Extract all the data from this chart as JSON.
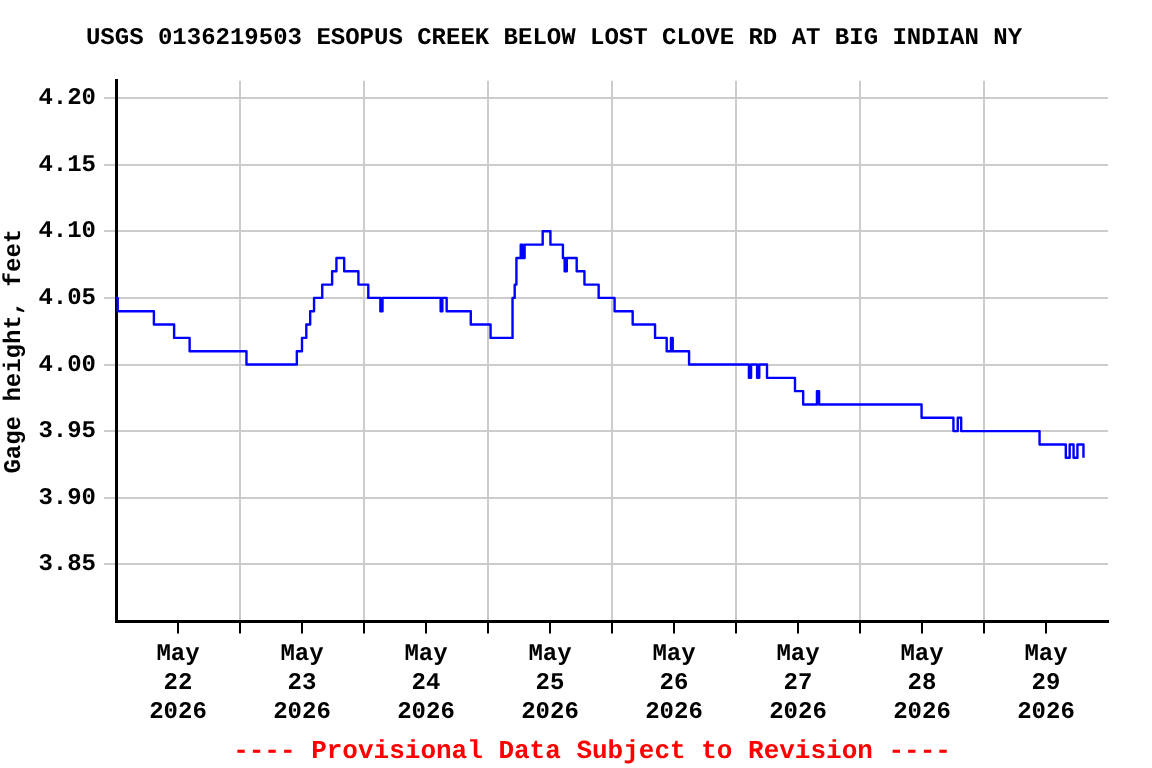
{
  "chart_data": {
    "type": "step",
    "title": "USGS 0136219503 ESOPUS CREEK BELOW LOST CLOVE RD AT BIG INDIAN NY",
    "ylabel": "Gage height, feet",
    "annotations": [
      "---- Provisional Data Subject to Revision ----"
    ],
    "x": [
      "2026-05-22T00:00",
      "2026-05-22T00:20",
      "2026-05-22T07:20",
      "2026-05-22T11:15",
      "2026-05-22T14:15",
      "2026-05-23T01:15",
      "2026-05-23T11:00",
      "2026-05-23T12:00",
      "2026-05-23T12:50",
      "2026-05-23T13:35",
      "2026-05-23T14:20",
      "2026-05-23T15:55",
      "2026-05-23T17:50",
      "2026-05-23T18:40",
      "2026-05-23T20:10",
      "2026-05-23T22:55",
      "2026-05-24T00:50",
      "2026-05-24T03:10",
      "2026-05-24T03:35",
      "2026-05-24T14:50",
      "2026-05-24T15:10",
      "2026-05-24T16:00",
      "2026-05-24T20:40",
      "2026-05-25T00:30",
      "2026-05-25T04:45",
      "2026-05-25T05:10",
      "2026-05-25T05:30",
      "2026-05-25T06:20",
      "2026-05-25T06:40",
      "2026-05-25T07:05",
      "2026-05-25T10:35",
      "2026-05-25T12:05",
      "2026-05-25T14:30",
      "2026-05-25T14:50",
      "2026-05-25T15:15",
      "2026-05-25T17:10",
      "2026-05-25T18:40",
      "2026-05-25T21:25",
      "2026-05-26T00:30",
      "2026-05-26T04:00",
      "2026-05-26T08:20",
      "2026-05-26T10:35",
      "2026-05-26T11:25",
      "2026-05-26T11:45",
      "2026-05-26T14:55",
      "2026-05-27T02:30",
      "2026-05-27T02:55",
      "2026-05-27T04:05",
      "2026-05-27T04:30",
      "2026-05-27T06:00",
      "2026-05-27T11:25",
      "2026-05-27T13:00",
      "2026-05-27T15:40",
      "2026-05-27T16:05",
      "2026-05-28T11:55",
      "2026-05-28T18:05",
      "2026-05-28T18:55",
      "2026-05-28T19:35",
      "2026-05-29T10:45",
      "2026-05-29T15:50",
      "2026-05-29T16:35",
      "2026-05-29T17:20",
      "2026-05-29T18:05",
      "2026-05-29T19:15"
    ],
    "series": [
      {
        "color": "#0000ff",
        "values": [
          4.05,
          4.04,
          4.03,
          4.02,
          4.01,
          4.0,
          4.01,
          4.02,
          4.03,
          4.04,
          4.05,
          4.06,
          4.07,
          4.08,
          4.07,
          4.06,
          4.05,
          4.04,
          4.05,
          4.04,
          4.05,
          4.04,
          4.03,
          4.02,
          4.05,
          4.06,
          4.08,
          4.09,
          4.08,
          4.09,
          4.1,
          4.09,
          4.08,
          4.07,
          4.08,
          4.07,
          4.06,
          4.05,
          4.04,
          4.03,
          4.02,
          4.01,
          4.02,
          4.01,
          4.0,
          3.99,
          4.0,
          3.99,
          4.0,
          3.99,
          3.98,
          3.97,
          3.98,
          3.97,
          3.96,
          3.95,
          3.96,
          3.95,
          3.94,
          3.93,
          3.94,
          3.93,
          3.94,
          3.93
        ]
      }
    ],
    "xlim": [
      "2026-05-22T00:00",
      "2026-05-30T00:00"
    ],
    "xticks": [
      {
        "value": "2026-05-22T12:00",
        "label": "May\n22\n2026"
      },
      {
        "value": "2026-05-23T00:00",
        "label": null
      },
      {
        "value": "2026-05-23T12:00",
        "label": "May\n23\n2026"
      },
      {
        "value": "2026-05-24T00:00",
        "label": null
      },
      {
        "value": "2026-05-24T12:00",
        "label": "May\n24\n2026"
      },
      {
        "value": "2026-05-25T00:00",
        "label": null
      },
      {
        "value": "2026-05-25T12:00",
        "label": "May\n25\n2026"
      },
      {
        "value": "2026-05-26T00:00",
        "label": null
      },
      {
        "value": "2026-05-26T12:00",
        "label": "May\n26\n2026"
      },
      {
        "value": "2026-05-27T00:00",
        "label": null
      },
      {
        "value": "2026-05-27T12:00",
        "label": "May\n27\n2026"
      },
      {
        "value": "2026-05-28T00:00",
        "label": null
      },
      {
        "value": "2026-05-28T12:00",
        "label": "May\n28\n2026"
      },
      {
        "value": "2026-05-29T00:00",
        "label": null
      },
      {
        "value": "2026-05-29T12:00",
        "label": "May\n29\n2026"
      }
    ],
    "ylim": [
      3.807,
      4.213
    ],
    "yticks": [
      {
        "value": 3.85,
        "label": "3.85"
      },
      {
        "value": 3.9,
        "label": "3.90"
      },
      {
        "value": 3.95,
        "label": "3.95"
      },
      {
        "value": 4.0,
        "label": "4.00"
      },
      {
        "value": 4.05,
        "label": "4.05"
      },
      {
        "value": 4.1,
        "label": "4.10"
      },
      {
        "value": 4.15,
        "label": "4.15"
      },
      {
        "value": 4.2,
        "label": "4.20"
      }
    ],
    "grid": true,
    "legend": false
  }
}
